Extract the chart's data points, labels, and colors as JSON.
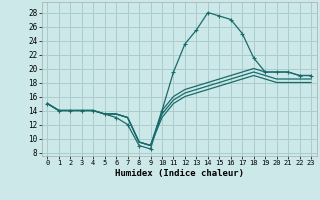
{
  "xlabel": "Humidex (Indice chaleur)",
  "xlim": [
    -0.5,
    23.5
  ],
  "ylim": [
    7.5,
    29.5
  ],
  "xticks": [
    0,
    1,
    2,
    3,
    4,
    5,
    6,
    7,
    8,
    9,
    10,
    11,
    12,
    13,
    14,
    15,
    16,
    17,
    18,
    19,
    20,
    21,
    22,
    23
  ],
  "yticks": [
    8,
    10,
    12,
    14,
    16,
    18,
    20,
    22,
    24,
    26,
    28
  ],
  "bg_color": "#cce8e8",
  "grid_color": "#aacccc",
  "line_color": "#1a6b6b",
  "lines": [
    {
      "x": [
        0,
        1,
        2,
        3,
        4,
        5,
        6,
        7,
        8,
        9,
        10,
        11,
        12,
        13,
        14,
        15,
        16,
        17,
        18,
        19,
        20,
        21,
        22,
        23
      ],
      "y": [
        15,
        14,
        14,
        14,
        14,
        13.5,
        13,
        12,
        9,
        8.5,
        14,
        19.5,
        23.5,
        25.5,
        28,
        27.5,
        27,
        25,
        21.5,
        19.5,
        19.5,
        19.5,
        19,
        19
      ],
      "marker": true
    },
    {
      "x": [
        0,
        1,
        2,
        3,
        4,
        5,
        6,
        7,
        8,
        9,
        10,
        11,
        12,
        13,
        14,
        15,
        16,
        17,
        18,
        19,
        20,
        21,
        22,
        23
      ],
      "y": [
        15,
        14,
        14,
        14,
        14,
        13.5,
        13.5,
        13,
        9.5,
        9,
        14,
        16,
        17,
        17.5,
        18,
        18.5,
        19,
        19.5,
        20,
        19.5,
        19.5,
        19.5,
        19,
        19
      ],
      "marker": false
    },
    {
      "x": [
        0,
        1,
        2,
        3,
        4,
        5,
        6,
        7,
        8,
        9,
        10,
        11,
        12,
        13,
        14,
        15,
        16,
        17,
        18,
        19,
        20,
        21,
        22,
        23
      ],
      "y": [
        15,
        14,
        14,
        14,
        14,
        13.5,
        13.5,
        13,
        9.5,
        9,
        13.5,
        15.5,
        16.5,
        17,
        17.5,
        18,
        18.5,
        19,
        19.5,
        19,
        18.5,
        18.5,
        18.5,
        18.5
      ],
      "marker": false
    },
    {
      "x": [
        0,
        1,
        2,
        3,
        4,
        5,
        6,
        7,
        8,
        9,
        10,
        11,
        12,
        13,
        14,
        15,
        16,
        17,
        18,
        19,
        20,
        21,
        22,
        23
      ],
      "y": [
        15,
        14,
        14,
        14,
        14,
        13.5,
        13.5,
        13,
        9.5,
        9,
        13,
        15,
        16,
        16.5,
        17,
        17.5,
        18,
        18.5,
        19,
        18.5,
        18,
        18,
        18,
        18
      ],
      "marker": false
    }
  ]
}
